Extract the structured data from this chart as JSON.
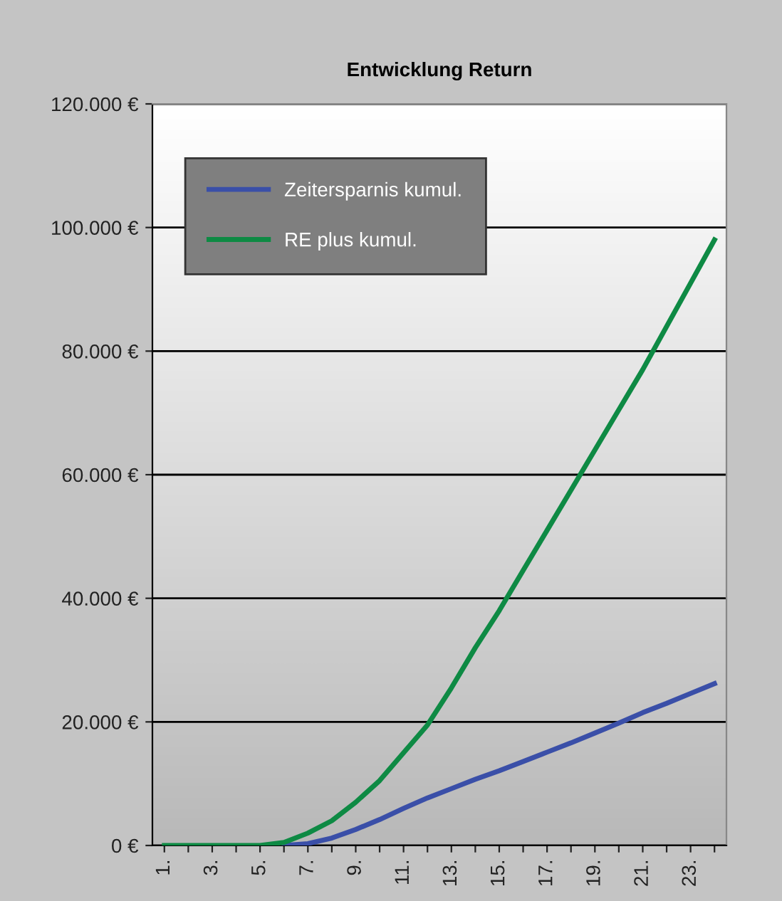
{
  "chart_data": {
    "type": "line",
    "title": "Entwicklung Return",
    "categories": [
      "1.",
      null,
      "3.",
      null,
      "5.",
      null,
      "7.",
      null,
      "9.",
      null,
      "11.",
      null,
      "13.",
      null,
      "15.",
      null,
      "17.",
      null,
      "19.",
      null,
      "21.",
      null,
      "23.",
      null
    ],
    "series": [
      {
        "name": "Zeitersparnis kumul.",
        "color": "#3a4fa8",
        "values": [
          null,
          null,
          null,
          null,
          null,
          0,
          300,
          1200,
          2600,
          4200,
          6000,
          7700,
          9200,
          10700,
          12100,
          13600,
          15100,
          16600,
          18200,
          19800,
          21500,
          23000,
          24600,
          26200
        ]
      },
      {
        "name": "RE plus kumul.",
        "color": "#0e8a44",
        "values": [
          0,
          0,
          0,
          0,
          0,
          500,
          2000,
          4000,
          7000,
          10500,
          15000,
          19500,
          25500,
          32000,
          38000,
          44500,
          51000,
          57500,
          64000,
          70500,
          77000,
          84000,
          91000,
          98000
        ]
      }
    ],
    "ylim": [
      0,
      120000
    ],
    "yticks": [
      {
        "value": 0,
        "label": "0 €"
      },
      {
        "value": 20000,
        "label": "20.000 €"
      },
      {
        "value": 40000,
        "label": "40.000 €"
      },
      {
        "value": 60000,
        "label": "60.000 €"
      },
      {
        "value": 80000,
        "label": "80.000 €"
      },
      {
        "value": 100000,
        "label": "100.000 €"
      },
      {
        "value": 120000,
        "label": "120.000 €"
      }
    ],
    "grid": "y",
    "legend": "top left",
    "marker": "none",
    "line_style": "solid"
  }
}
